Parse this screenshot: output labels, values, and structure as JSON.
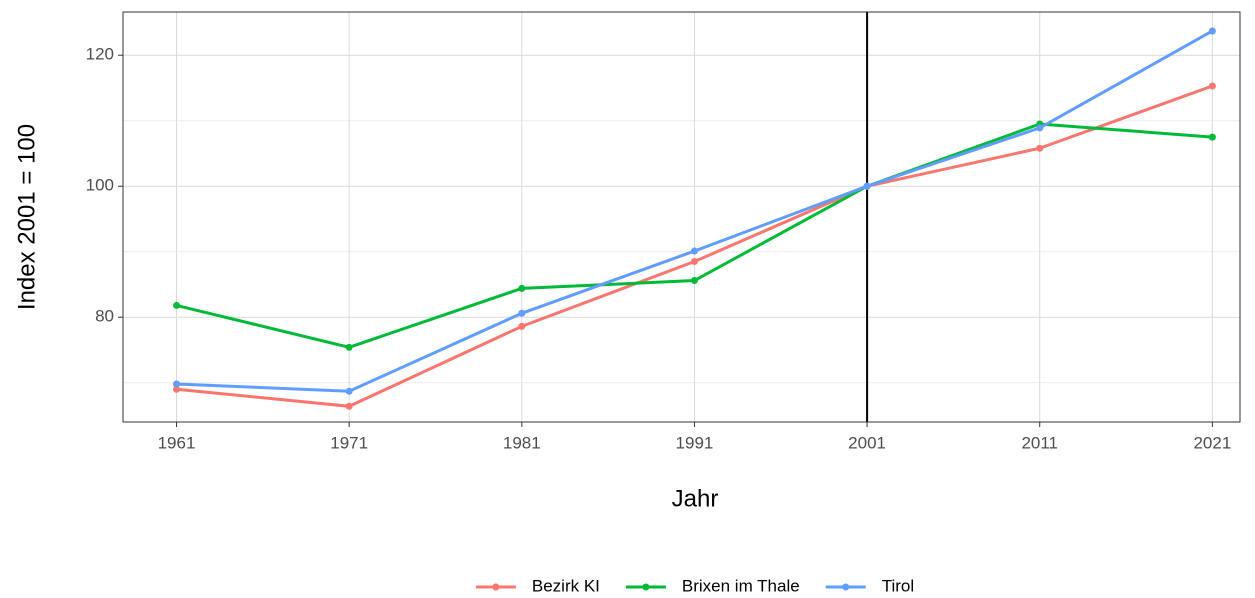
{
  "chart_data": {
    "type": "line",
    "x_label": "Jahr",
    "y_label": "Index 2001 = 100",
    "x": [
      1961,
      1971,
      1981,
      1991,
      2001,
      2011,
      2021
    ],
    "series": [
      {
        "name": "Bezirk KI",
        "color": "#F8766D",
        "values": [
          69.0,
          66.4,
          78.6,
          88.5,
          100,
          105.8,
          115.3
        ]
      },
      {
        "name": "Brixen im Thale",
        "color": "#00BA38",
        "values": [
          81.8,
          75.4,
          84.4,
          85.6,
          100,
          109.5,
          107.5
        ]
      },
      {
        "name": "Tirol",
        "color": "#619CFF",
        "values": [
          69.8,
          68.7,
          80.6,
          90.1,
          100,
          108.9,
          123.7
        ]
      }
    ],
    "xlim": [
      1957.9,
      2022.6
    ],
    "xticks": [
      1961,
      1971,
      1981,
      1991,
      2001,
      2011,
      2021
    ],
    "ylim": [
      64.0,
      126.6
    ],
    "yticks": [
      80,
      100,
      120
    ],
    "yminor": [
      70,
      90,
      110
    ],
    "vline": 2001,
    "grid": true,
    "legend": "bottom"
  }
}
